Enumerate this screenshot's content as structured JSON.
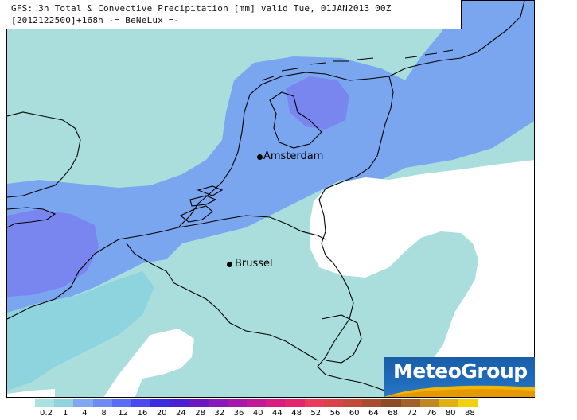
{
  "title": {
    "line1": "GFS: 3h Total & Convective Precipitation [mm] valid Tue, 01JAN2013 00Z",
    "line2": "[2012122500]+168h -= BeNeLux =-"
  },
  "cities": [
    {
      "name": "Amsterdam"
    },
    {
      "name": "Brussel"
    }
  ],
  "logo": {
    "text": "MeteoGroup",
    "colors": {
      "bg": "#1f6bbb",
      "swoosh": "#f2b705"
    }
  },
  "legend": {
    "values": [
      "0.2",
      "1",
      "4",
      "8",
      "12",
      "16",
      "20",
      "24",
      "28",
      "32",
      "36",
      "40",
      "44",
      "48",
      "52",
      "56",
      "60",
      "64",
      "68",
      "72",
      "76",
      "80",
      "88"
    ],
    "colors": [
      "#a9e0e0",
      "#8fd3df",
      "#7fa8ee",
      "#6d8bf0",
      "#5a6cf5",
      "#4a49ee",
      "#3a2ee0",
      "#4b1fd0",
      "#6a17c0",
      "#8a1ab8",
      "#a818a8",
      "#c21898",
      "#d81c84",
      "#e52470",
      "#ea3b5c",
      "#d8434a",
      "#c24a3c",
      "#a84d30",
      "#8e4a28",
      "#a0622a",
      "#c08820",
      "#e0b010",
      "#f2d00a"
    ]
  },
  "map_colors": {
    "light": "#a9dedd",
    "mid": "#79a6ef",
    "dark": "#7a80f0",
    "land_none": "#ffffff"
  }
}
